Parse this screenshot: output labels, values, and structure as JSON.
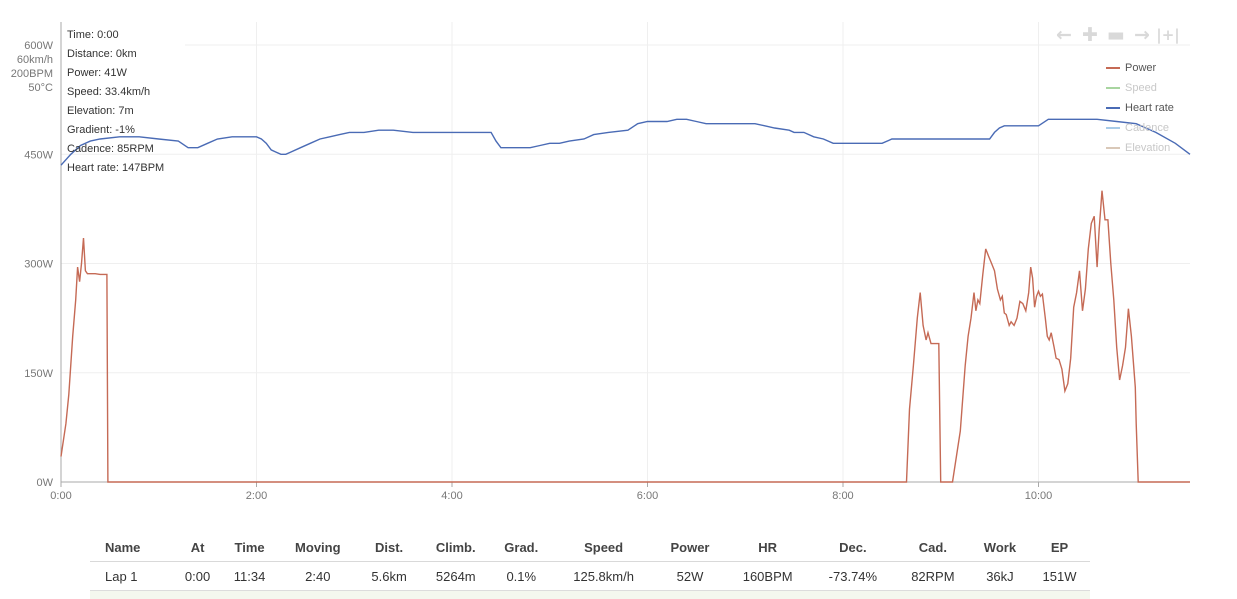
{
  "tooltip": {
    "time": "Time: 0:00",
    "distance": "Distance: 0km",
    "power": "Power: 41W",
    "speed": "Speed: 33.4km/h",
    "elevation": "Elevation: 7m",
    "gradient": "Gradient: -1%",
    "cadence": "Cadence: 85RPM",
    "heart_rate": "Heart rate: 147BPM"
  },
  "zoom": {
    "back_icon": "arrow-left-icon",
    "zoom_in_icon": "plus-icon",
    "zoom_out_icon": "minus-icon",
    "forward_icon": "arrow-right-icon",
    "reset_icon": "reset-zoom-icon"
  },
  "legend": [
    {
      "label": "Power",
      "color": "#c56a55",
      "active": true
    },
    {
      "label": "Speed",
      "color": "#a8d5a0",
      "active": false
    },
    {
      "label": "Heart rate",
      "color": "#4a6bb5",
      "active": true
    },
    {
      "label": "Cadence",
      "color": "#a8cbe8",
      "active": false
    },
    {
      "label": "Elevation",
      "color": "#d9c8b8",
      "active": false
    }
  ],
  "chart_data": {
    "type": "line",
    "axis_top_labels": [
      "600W",
      "60km/h",
      "200BPM",
      "50°C"
    ],
    "y_ticks": [
      "0W",
      "150W",
      "300W",
      "450W"
    ],
    "y_tick_values": [
      0,
      150,
      300,
      450
    ],
    "ylim": [
      0,
      600
    ],
    "x_ticks": [
      "0:00",
      "2:00",
      "4:00",
      "6:00",
      "8:00",
      "10:00"
    ],
    "x_tick_values": [
      0,
      2,
      4,
      6,
      8,
      10
    ],
    "xlim": [
      0,
      11.55
    ],
    "grid": true,
    "legend_position": "top-right",
    "series": [
      {
        "name": "Power",
        "color": "#c56a55",
        "points": [
          [
            0.0,
            35
          ],
          [
            0.05,
            80
          ],
          [
            0.08,
            120
          ],
          [
            0.12,
            200
          ],
          [
            0.15,
            250
          ],
          [
            0.17,
            295
          ],
          [
            0.19,
            275
          ],
          [
            0.21,
            300
          ],
          [
            0.23,
            335
          ],
          [
            0.25,
            290
          ],
          [
            0.27,
            286
          ],
          [
            0.35,
            286
          ],
          [
            0.4,
            285
          ],
          [
            0.47,
            285
          ],
          [
            0.48,
            0
          ],
          [
            8.65,
            0
          ],
          [
            8.68,
            100
          ],
          [
            8.72,
            160
          ],
          [
            8.76,
            225
          ],
          [
            8.79,
            260
          ],
          [
            8.82,
            215
          ],
          [
            8.85,
            195
          ],
          [
            8.87,
            205
          ],
          [
            8.9,
            190
          ],
          [
            8.93,
            190
          ],
          [
            8.98,
            190
          ],
          [
            9.0,
            0
          ],
          [
            9.12,
            0
          ],
          [
            9.2,
            70
          ],
          [
            9.25,
            160
          ],
          [
            9.28,
            200
          ],
          [
            9.31,
            225
          ],
          [
            9.34,
            260
          ],
          [
            9.36,
            235
          ],
          [
            9.38,
            250
          ],
          [
            9.4,
            245
          ],
          [
            9.43,
            285
          ],
          [
            9.46,
            320
          ],
          [
            9.49,
            310
          ],
          [
            9.52,
            300
          ],
          [
            9.55,
            290
          ],
          [
            9.58,
            265
          ],
          [
            9.61,
            250
          ],
          [
            9.63,
            255
          ],
          [
            9.65,
            232
          ],
          [
            9.67,
            230
          ],
          [
            9.7,
            215
          ],
          [
            9.72,
            220
          ],
          [
            9.75,
            215
          ],
          [
            9.78,
            225
          ],
          [
            9.81,
            248
          ],
          [
            9.84,
            245
          ],
          [
            9.87,
            235
          ],
          [
            9.9,
            260
          ],
          [
            9.92,
            295
          ],
          [
            9.94,
            280
          ],
          [
            9.96,
            240
          ],
          [
            9.98,
            255
          ],
          [
            10.0,
            262
          ],
          [
            10.02,
            255
          ],
          [
            10.04,
            258
          ],
          [
            10.07,
            225
          ],
          [
            10.09,
            200
          ],
          [
            10.11,
            195
          ],
          [
            10.13,
            205
          ],
          [
            10.16,
            185
          ],
          [
            10.18,
            170
          ],
          [
            10.21,
            168
          ],
          [
            10.24,
            155
          ],
          [
            10.27,
            125
          ],
          [
            10.3,
            135
          ],
          [
            10.33,
            170
          ],
          [
            10.36,
            240
          ],
          [
            10.39,
            260
          ],
          [
            10.42,
            290
          ],
          [
            10.45,
            235
          ],
          [
            10.48,
            265
          ],
          [
            10.51,
            320
          ],
          [
            10.54,
            355
          ],
          [
            10.57,
            365
          ],
          [
            10.6,
            295
          ],
          [
            10.62,
            345
          ],
          [
            10.65,
            400
          ],
          [
            10.68,
            360
          ],
          [
            10.71,
            360
          ],
          [
            10.74,
            300
          ],
          [
            10.77,
            250
          ],
          [
            10.8,
            185
          ],
          [
            10.83,
            140
          ],
          [
            10.86,
            160
          ],
          [
            10.89,
            185
          ],
          [
            10.92,
            238
          ],
          [
            10.95,
            200
          ],
          [
            10.99,
            130
          ],
          [
            11.0,
            80
          ],
          [
            11.02,
            0
          ],
          [
            11.55,
            0
          ]
        ]
      },
      {
        "name": "Heart rate",
        "color": "#4a6bb5",
        "points": [
          [
            0.0,
            145
          ],
          [
            0.1,
            150
          ],
          [
            0.2,
            154
          ],
          [
            0.3,
            156
          ],
          [
            0.4,
            157
          ],
          [
            0.6,
            158
          ],
          [
            0.8,
            158
          ],
          [
            1.0,
            157
          ],
          [
            1.2,
            156
          ],
          [
            1.3,
            153
          ],
          [
            1.4,
            153
          ],
          [
            1.5,
            155
          ],
          [
            1.6,
            157
          ],
          [
            1.75,
            158
          ],
          [
            2.0,
            158
          ],
          [
            2.05,
            157
          ],
          [
            2.1,
            155
          ],
          [
            2.15,
            152
          ],
          [
            2.2,
            151
          ],
          [
            2.25,
            150
          ],
          [
            2.3,
            150
          ],
          [
            2.35,
            151
          ],
          [
            2.45,
            153
          ],
          [
            2.55,
            155
          ],
          [
            2.65,
            157
          ],
          [
            2.75,
            158
          ],
          [
            2.85,
            159
          ],
          [
            2.95,
            160
          ],
          [
            3.1,
            160
          ],
          [
            3.25,
            161
          ],
          [
            3.4,
            161
          ],
          [
            3.6,
            160
          ],
          [
            3.8,
            160
          ],
          [
            4.0,
            160
          ],
          [
            4.2,
            160
          ],
          [
            4.4,
            160
          ],
          [
            4.45,
            156
          ],
          [
            4.5,
            153
          ],
          [
            4.6,
            153
          ],
          [
            4.7,
            153
          ],
          [
            4.8,
            153
          ],
          [
            4.9,
            154
          ],
          [
            5.0,
            155
          ],
          [
            5.1,
            155
          ],
          [
            5.2,
            156
          ],
          [
            5.35,
            157
          ],
          [
            5.45,
            159
          ],
          [
            5.6,
            160
          ],
          [
            5.8,
            161
          ],
          [
            5.9,
            164
          ],
          [
            6.0,
            165
          ],
          [
            6.1,
            165
          ],
          [
            6.2,
            165
          ],
          [
            6.3,
            166
          ],
          [
            6.4,
            166
          ],
          [
            6.5,
            165
          ],
          [
            6.6,
            164
          ],
          [
            6.8,
            164
          ],
          [
            7.0,
            164
          ],
          [
            7.1,
            164
          ],
          [
            7.2,
            163
          ],
          [
            7.3,
            162
          ],
          [
            7.45,
            161
          ],
          [
            7.5,
            160
          ],
          [
            7.6,
            160
          ],
          [
            7.7,
            158
          ],
          [
            7.8,
            157
          ],
          [
            7.9,
            155
          ],
          [
            8.0,
            155
          ],
          [
            8.2,
            155
          ],
          [
            8.4,
            155
          ],
          [
            8.5,
            157
          ],
          [
            8.7,
            157
          ],
          [
            9.0,
            157
          ],
          [
            9.2,
            157
          ],
          [
            9.5,
            157
          ],
          [
            9.55,
            160
          ],
          [
            9.6,
            162
          ],
          [
            9.65,
            163
          ],
          [
            9.8,
            163
          ],
          [
            10.0,
            163
          ],
          [
            10.1,
            166
          ],
          [
            10.3,
            166
          ],
          [
            10.5,
            166
          ],
          [
            10.6,
            166
          ],
          [
            10.8,
            165
          ],
          [
            11.0,
            164
          ],
          [
            11.2,
            160
          ],
          [
            11.4,
            155
          ],
          [
            11.55,
            150
          ]
        ],
        "heart_rate_scale_max": 200
      }
    ]
  },
  "laps": {
    "headers": [
      "Name",
      "At",
      "Time",
      "Moving",
      "Dist.",
      "Climb.",
      "Grad.",
      "Speed",
      "Power",
      "HR",
      "Dec.",
      "Cad.",
      "Work",
      "EP"
    ],
    "rows": [
      [
        "Lap 1",
        "0:00",
        "11:34",
        "2:40",
        "5.6km",
        "5264m",
        "0.1%",
        "125.8km/h",
        "52W",
        "160BPM",
        "-73.74%",
        "82RPM",
        "36kJ",
        "151W"
      ]
    ]
  }
}
